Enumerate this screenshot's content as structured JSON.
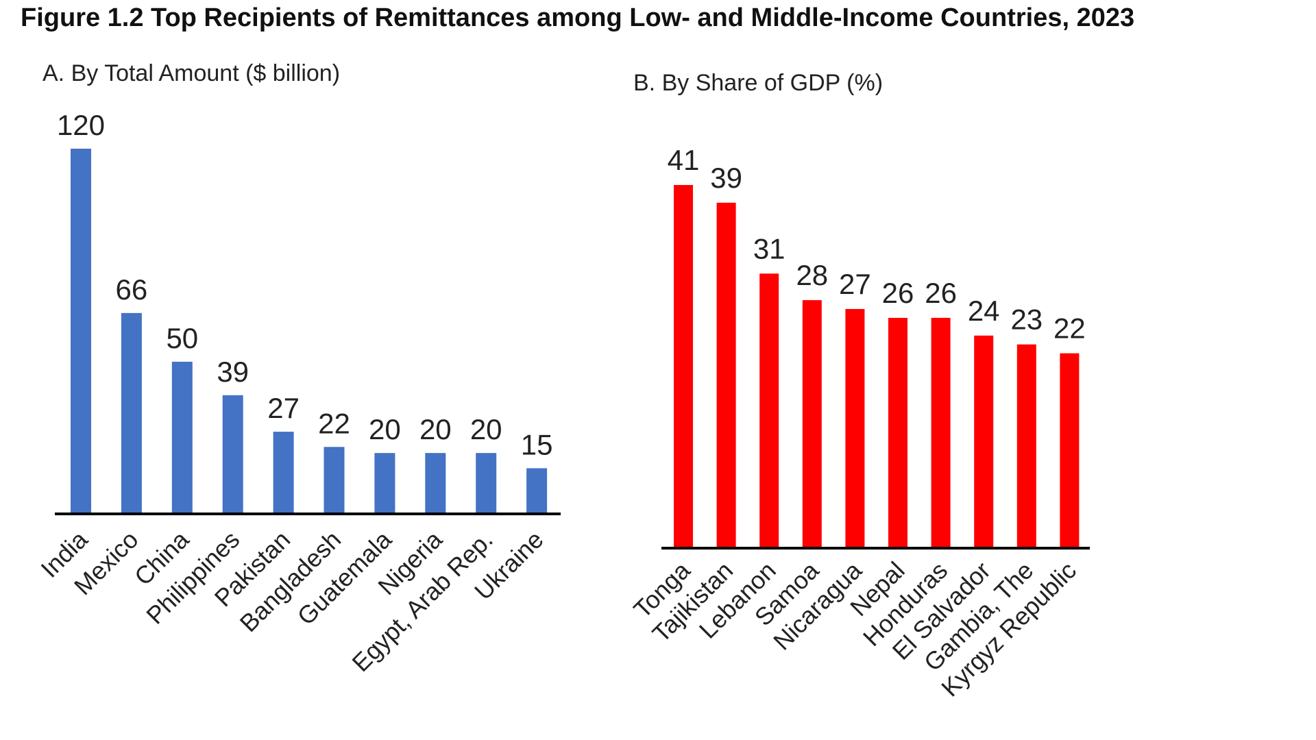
{
  "figure_title": "Figure 1.2 Top Recipients of Remittances among Low- and Middle-Income Countries, 2023",
  "chart_data": [
    {
      "type": "bar",
      "title": "A. By Total Amount ($ billion)",
      "categories": [
        "India",
        "Mexico",
        "China",
        "Philippines",
        "Pakistan",
        "Bangladesh",
        "Guatemala",
        "Nigeria",
        "Egypt, Arab Rep.",
        "Ukraine"
      ],
      "values": [
        120,
        66,
        50,
        39,
        27,
        22,
        20,
        20,
        20,
        15
      ],
      "xlabel": "",
      "ylabel": "",
      "ylim": [
        0,
        120
      ],
      "color": "#4472c4",
      "grid": false
    },
    {
      "type": "bar",
      "title": "B. By Share of GDP (%)",
      "categories": [
        "Tonga",
        "Tajikistan",
        "Lebanon",
        "Samoa",
        "Nicaragua",
        "Nepal",
        "Honduras",
        "El Salvador",
        "Gambia, The",
        "Kyrgyz Republic"
      ],
      "values": [
        41,
        39,
        31,
        28,
        27,
        26,
        26,
        24,
        23,
        22
      ],
      "xlabel": "",
      "ylabel": "",
      "ylim": [
        0,
        41
      ],
      "color": "#ff0000",
      "grid": false
    }
  ]
}
